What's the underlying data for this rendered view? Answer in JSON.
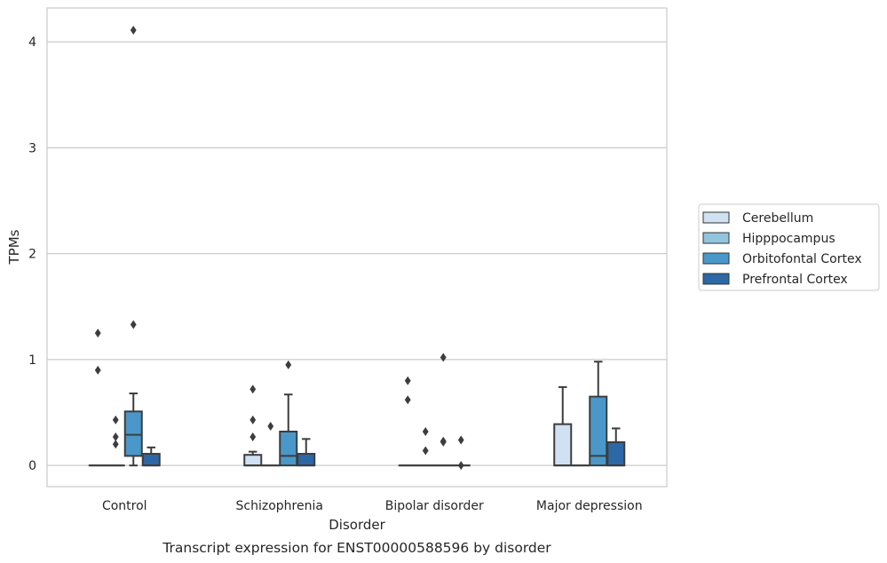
{
  "chart_data": {
    "type": "box",
    "caption": "Transcript expression for ENST00000588596 by disorder",
    "xlabel": "Disorder",
    "ylabel": "TPMs",
    "categories": [
      "Control",
      "Schizophrenia",
      "Bipolar disorder",
      "Major depression"
    ],
    "ylim": [
      -0.2,
      4.32
    ],
    "yticks": [
      "0",
      "1",
      "2",
      "3",
      "4"
    ],
    "grid": true,
    "legend_position": "right",
    "series": [
      {
        "name": "Cerebellum",
        "color": "#cfe1f2",
        "boxes": [
          {
            "min": 0,
            "q1": 0,
            "median": 0,
            "q3": 0,
            "max": 0,
            "outliers": [
              1.25,
              0.9
            ]
          },
          {
            "min": 0,
            "q1": 0,
            "median": 0,
            "q3": 0.1,
            "max": 0.13,
            "outliers": [
              0.72,
              0.43,
              0.27
            ]
          },
          {
            "min": 0,
            "q1": 0,
            "median": 0,
            "q3": 0,
            "max": 0,
            "outliers": [
              0.8,
              0.62
            ]
          },
          {
            "min": 0,
            "q1": 0,
            "median": 0,
            "q3": 0.39,
            "max": 0.74,
            "outliers": []
          }
        ]
      },
      {
        "name": "Hipppocampus",
        "color": "#93c4de",
        "boxes": [
          {
            "min": 0,
            "q1": 0,
            "median": 0,
            "q3": 0,
            "max": 0,
            "outliers": [
              0.43,
              0.27,
              0.2
            ]
          },
          {
            "min": 0,
            "q1": 0,
            "median": 0,
            "q3": 0,
            "max": 0,
            "outliers": [
              0.37
            ]
          },
          {
            "min": 0,
            "q1": 0,
            "median": 0,
            "q3": 0,
            "max": 0,
            "outliers": [
              0.32,
              0.14
            ]
          },
          {
            "min": 0,
            "q1": 0,
            "median": 0,
            "q3": 0,
            "max": 0,
            "outliers": []
          }
        ]
      },
      {
        "name": "Orbitofontal Cortex",
        "color": "#4a98c9",
        "boxes": [
          {
            "min": 0,
            "q1": 0.09,
            "median": 0.29,
            "q3": 0.51,
            "max": 0.68,
            "outliers": [
              4.11,
              1.33
            ]
          },
          {
            "min": 0,
            "q1": 0,
            "median": 0.09,
            "q3": 0.32,
            "max": 0.67,
            "outliers": [
              0.95
            ]
          },
          {
            "min": 0,
            "q1": 0,
            "median": 0,
            "q3": 0,
            "max": 0,
            "outliers": [
              1.02,
              0.23,
              0.22
            ]
          },
          {
            "min": 0,
            "q1": 0,
            "median": 0.09,
            "q3": 0.65,
            "max": 0.98,
            "outliers": []
          }
        ]
      },
      {
        "name": "Prefrontal Cortex",
        "color": "#2c67a6",
        "boxes": [
          {
            "min": 0,
            "q1": 0,
            "median": 0,
            "q3": 0.11,
            "max": 0.17,
            "outliers": []
          },
          {
            "min": 0,
            "q1": 0,
            "median": 0,
            "q3": 0.11,
            "max": 0.25,
            "outliers": []
          },
          {
            "min": 0,
            "q1": 0,
            "median": 0,
            "q3": 0,
            "max": 0,
            "outliers": [
              0.24,
              0.0
            ]
          },
          {
            "min": 0,
            "q1": 0,
            "median": 0,
            "q3": 0.22,
            "max": 0.35,
            "outliers": []
          }
        ]
      }
    ]
  }
}
